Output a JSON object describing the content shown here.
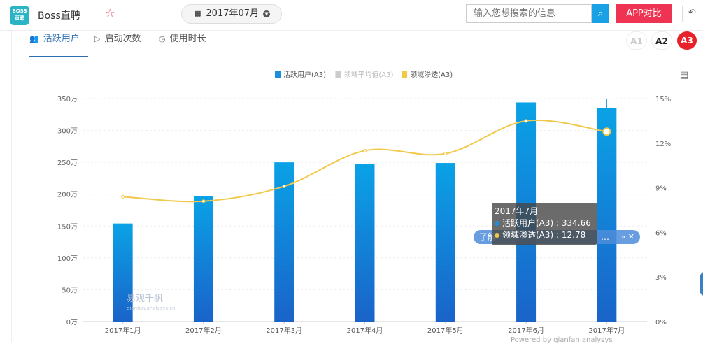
{
  "app": {
    "logo_text": "BOSS\n直聘",
    "name": "Boss直聘"
  },
  "header": {
    "date": "2017年07月",
    "search_placeholder": "输入您想搜索的信息",
    "compare_label": "APP对比"
  },
  "tabs": [
    {
      "label": "活跃用户",
      "icon": "users-icon",
      "active": true
    },
    {
      "label": "启动次数",
      "icon": "play-icon",
      "active": false
    },
    {
      "label": "使用时长",
      "icon": "clock-icon",
      "active": false
    }
  ],
  "segments": [
    "A1",
    "A2",
    "A3"
  ],
  "legend": [
    {
      "label": "活跃用户(A3)",
      "color": "#1a8fdc"
    },
    {
      "label": "领域平均值(A3)",
      "color": "#cccccc"
    },
    {
      "label": "领域渗透(A3)",
      "color": "#f0c94c"
    }
  ],
  "chart_data": {
    "type": "bar",
    "categories": [
      "2017年1月",
      "2017年2月",
      "2017年3月",
      "2017年4月",
      "2017年5月",
      "2017年6月",
      "2017年7月"
    ],
    "series": [
      {
        "name": "活跃用户(A3)",
        "type": "bar",
        "axis": "left",
        "values": [
          154,
          197,
          250,
          247,
          249,
          344,
          334.66
        ]
      },
      {
        "name": "领域渗透(A3)",
        "type": "line",
        "axis": "right",
        "values": [
          8.4,
          8.1,
          9.1,
          11.5,
          11.3,
          13.5,
          12.78
        ]
      }
    ],
    "y_left": {
      "ylim": [
        0,
        350
      ],
      "ticks": [
        "0万",
        "50万",
        "100万",
        "150万",
        "200万",
        "250万",
        "300万",
        "350万"
      ]
    },
    "y_right": {
      "ylim": [
        0,
        15
      ],
      "ticks": [
        "0%",
        "3%",
        "6%",
        "9%",
        "12%",
        "15%"
      ]
    },
    "grid": true,
    "legend_position": "top-center"
  },
  "tooltip": {
    "title": "2017年7月",
    "line1": "活跃用户(A3) : 334.66",
    "line2": "领域渗透(A3) : 12.78"
  },
  "floatbar": {
    "text": "了解",
    "tail": "…",
    "controls": "» ✕"
  },
  "watermark": {
    "text": "易观千帆",
    "sub": "qianfan.analysys.cn"
  },
  "footnote": "Powered by qianfan.analysys"
}
